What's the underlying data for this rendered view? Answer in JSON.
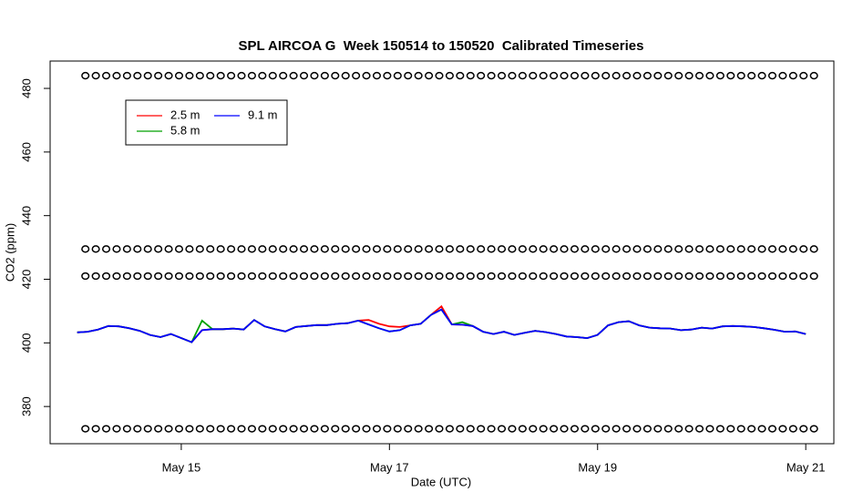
{
  "chart_data": {
    "type": "line",
    "title": "SPL AIRCOA G  Week 150514 to 150520  Calibrated Timeseries",
    "x_label": "Date (UTC)",
    "y_label": "CO2 (ppm)",
    "x": [
      0,
      0.1,
      0.2,
      0.3,
      0.4,
      0.5,
      0.6,
      0.7,
      0.8,
      0.9,
      1,
      1.1,
      1.2,
      1.3,
      1.4,
      1.5,
      1.6,
      1.7,
      1.8,
      1.9,
      2,
      2.1,
      2.2,
      2.3,
      2.4,
      2.5,
      2.6,
      2.7,
      2.8,
      2.9,
      3,
      3.1,
      3.2,
      3.3,
      3.4,
      3.5,
      3.6,
      3.7,
      3.8,
      3.9,
      4,
      4.1,
      4.2,
      4.3,
      4.4,
      4.5,
      4.6,
      4.7,
      4.8,
      4.9,
      5,
      5.1,
      5.2,
      5.3,
      5.4,
      5.5,
      5.6,
      5.7,
      5.8,
      5.9,
      6,
      6.1,
      6.2,
      6.3,
      6.4,
      6.5,
      6.6,
      6.7,
      6.8,
      6.9,
      7
    ],
    "xlim": [
      -0.26,
      7.27
    ],
    "xticks": [
      {
        "value": 1,
        "label": "May 15"
      },
      {
        "value": 3,
        "label": "May 17"
      },
      {
        "value": 5,
        "label": "May 19"
      },
      {
        "value": 7,
        "label": "May 21"
      }
    ],
    "ylim": [
      368.3,
      488.6
    ],
    "yticks": [
      380,
      400,
      420,
      440,
      460,
      480
    ],
    "legend": "topleft",
    "series": [
      {
        "name": "2.5 m",
        "color": "#ff0000",
        "mode": "line",
        "values": [
          403.3,
          403.5,
          404.2,
          405.3,
          405.2,
          404.6,
          403.8,
          402.5,
          401.8,
          402.8,
          401.5,
          400.2,
          404.0,
          404.3,
          404.3,
          404.5,
          404.2,
          407.2,
          405.2,
          404.3,
          403.6,
          405.0,
          405.3,
          405.6,
          405.6,
          406.0,
          406.2,
          407.0,
          407.2,
          406.0,
          405.2,
          405.0,
          405.5,
          406.0,
          408.8,
          411.5,
          405.8,
          405.7,
          405.3,
          403.5,
          402.8,
          403.5,
          402.5,
          403.2,
          403.8,
          403.4,
          402.8,
          402.0,
          401.8,
          401.5,
          402.5,
          405.5,
          406.5,
          406.8,
          405.5,
          404.8,
          404.6,
          404.5,
          404.0,
          404.2,
          404.8,
          404.5,
          405.2,
          405.3,
          405.2,
          405.0,
          404.6,
          404.1,
          403.5,
          403.6,
          402.8
        ]
      },
      {
        "name": "5.8 m",
        "color": "#00a000",
        "mode": "line",
        "values": [
          403.3,
          403.5,
          404.2,
          405.3,
          405.2,
          404.6,
          403.8,
          402.5,
          401.8,
          402.8,
          401.5,
          400.2,
          407.0,
          404.3,
          404.3,
          404.5,
          404.2,
          407.2,
          405.2,
          404.3,
          403.6,
          405.0,
          405.3,
          405.6,
          405.6,
          406.0,
          406.2,
          407.0,
          405.8,
          404.6,
          403.6,
          404.0,
          405.5,
          406.0,
          408.8,
          410.5,
          405.8,
          406.5,
          405.3,
          403.5,
          402.8,
          403.5,
          402.5,
          403.2,
          403.8,
          403.4,
          402.8,
          402.0,
          401.8,
          401.5,
          402.5,
          405.5,
          406.5,
          406.8,
          405.5,
          404.8,
          404.6,
          404.5,
          404.0,
          404.2,
          404.8,
          404.5,
          405.2,
          405.3,
          405.2,
          405.0,
          404.6,
          404.1,
          403.5,
          403.6,
          402.8
        ]
      },
      {
        "name": "9.1 m",
        "color": "#0000ff",
        "mode": "line",
        "values": [
          403.3,
          403.5,
          404.2,
          405.3,
          405.2,
          404.6,
          403.8,
          402.5,
          401.8,
          402.8,
          401.5,
          400.2,
          404.0,
          404.3,
          404.3,
          404.5,
          404.2,
          407.2,
          405.2,
          404.3,
          403.6,
          405.0,
          405.3,
          405.6,
          405.6,
          406.0,
          406.2,
          407.0,
          405.8,
          404.6,
          403.6,
          404.0,
          405.5,
          406.0,
          408.8,
          410.5,
          405.8,
          405.7,
          405.3,
          403.5,
          402.8,
          403.5,
          402.5,
          403.2,
          403.8,
          403.4,
          402.8,
          402.0,
          401.8,
          401.5,
          402.5,
          405.5,
          406.5,
          406.8,
          405.5,
          404.8,
          404.6,
          404.5,
          404.0,
          404.2,
          404.8,
          404.5,
          405.2,
          405.3,
          405.2,
          405.0,
          404.6,
          404.1,
          403.5,
          403.6,
          402.8
        ]
      },
      {
        "color": "#000000",
        "mode": "markers",
        "values": [
          484,
          484,
          484,
          484,
          484,
          484,
          484,
          484,
          484,
          484,
          484,
          484,
          484,
          484,
          484,
          484,
          484,
          484,
          484,
          484,
          484,
          484,
          484,
          484,
          484,
          484,
          484,
          484,
          484,
          484,
          484,
          484,
          484,
          484,
          484,
          484,
          484,
          484,
          484,
          484,
          484,
          484,
          484,
          484,
          484,
          484,
          484,
          484,
          484,
          484,
          484,
          484,
          484,
          484,
          484,
          484,
          484,
          484,
          484,
          484,
          484,
          484,
          484,
          484,
          484,
          484,
          484,
          484,
          484,
          484,
          484
        ]
      },
      {
        "color": "#000000",
        "mode": "markers",
        "values": [
          429.5,
          429.5,
          429.5,
          429.5,
          429.5,
          429.5,
          429.5,
          429.5,
          429.5,
          429.5,
          429.5,
          429.5,
          429.5,
          429.5,
          429.5,
          429.5,
          429.5,
          429.5,
          429.5,
          429.5,
          429.5,
          429.5,
          429.5,
          429.5,
          429.5,
          429.5,
          429.5,
          429.5,
          429.5,
          429.5,
          429.5,
          429.5,
          429.5,
          429.5,
          429.5,
          429.5,
          429.5,
          429.5,
          429.5,
          429.5,
          429.5,
          429.5,
          429.5,
          429.5,
          429.5,
          429.5,
          429.5,
          429.5,
          429.5,
          429.5,
          429.5,
          429.5,
          429.5,
          429.5,
          429.5,
          429.5,
          429.5,
          429.5,
          429.5,
          429.5,
          429.5,
          429.5,
          429.5,
          429.5,
          429.5,
          429.5,
          429.5,
          429.5,
          429.5,
          429.5,
          429.5
        ]
      },
      {
        "color": "#000000",
        "mode": "markers",
        "values": [
          421,
          421,
          421,
          421,
          421,
          421,
          421,
          421,
          421,
          421,
          421,
          421,
          421,
          421,
          421,
          421,
          421,
          421,
          421,
          421,
          421,
          421,
          421,
          421,
          421,
          421,
          421,
          421,
          421,
          421,
          421,
          421,
          421,
          421,
          421,
          421,
          421,
          421,
          421,
          421,
          421,
          421,
          421,
          421,
          421,
          421,
          421,
          421,
          421,
          421,
          421,
          421,
          421,
          421,
          421,
          421,
          421,
          421,
          421,
          421,
          421,
          421,
          421,
          421,
          421,
          421,
          421,
          421,
          421,
          421,
          421
        ]
      },
      {
        "color": "#000000",
        "mode": "markers",
        "values": [
          373,
          373,
          373,
          373,
          373,
          373,
          373,
          373,
          373,
          373,
          373,
          373,
          373,
          373,
          373,
          373,
          373,
          373,
          373,
          373,
          373,
          373,
          373,
          373,
          373,
          373,
          373,
          373,
          373,
          373,
          373,
          373,
          373,
          373,
          373,
          373,
          373,
          373,
          373,
          373,
          373,
          373,
          373,
          373,
          373,
          373,
          373,
          373,
          373,
          373,
          373,
          373,
          373,
          373,
          373,
          373,
          373,
          373,
          373,
          373,
          373,
          373,
          373,
          373,
          373,
          373,
          373,
          373,
          373,
          373,
          373
        ]
      }
    ]
  }
}
